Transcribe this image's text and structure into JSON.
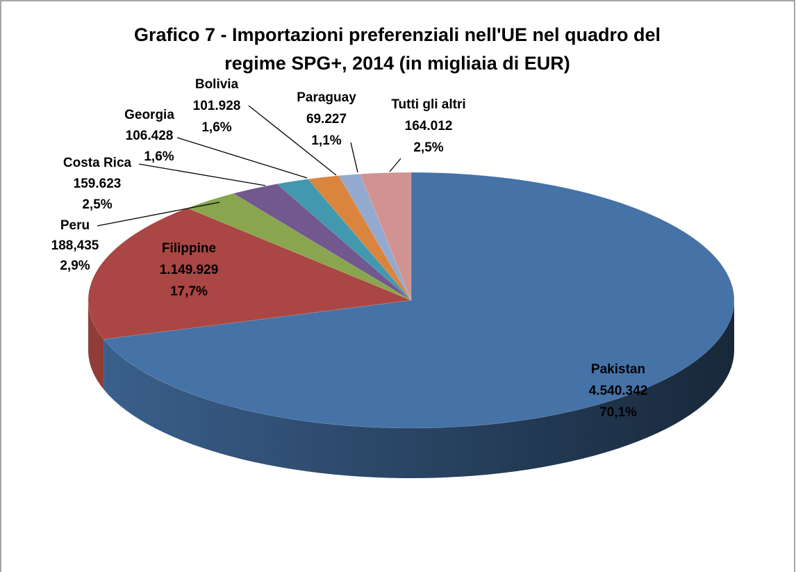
{
  "chart_data": {
    "type": "pie3d",
    "title_lines": [
      "Grafico 7 - Importazioni preferenziali nell'UE nel quadro del",
      "regime SPG+, 2014 (in migliaia di EUR)"
    ],
    "categories": [
      "Pakistan",
      "Filippine",
      "Peru",
      "Costa Rica",
      "Georgia",
      "Bolivia",
      "Paraguay",
      "Tutti gli altri"
    ],
    "values": [
      4540342,
      1149929,
      188435,
      159623,
      106428,
      101928,
      69227,
      164012
    ],
    "value_labels": [
      "4.540.342",
      "1.149.929",
      "188,435",
      "159.623",
      "106.428",
      "101.928",
      "69.227",
      "164.012"
    ],
    "percents": [
      70.1,
      17.7,
      2.9,
      2.5,
      1.6,
      1.6,
      1.1,
      2.5
    ],
    "percent_labels": [
      "70,1%",
      "17,7%",
      "2,9%",
      "2,5%",
      "1,6%",
      "1,6%",
      "1,1%",
      "2,5%"
    ],
    "colors": [
      "#4572a7",
      "#aa4643",
      "#89a54e",
      "#71588f",
      "#4198af",
      "#db843d",
      "#93a9cf",
      "#d19392"
    ]
  }
}
